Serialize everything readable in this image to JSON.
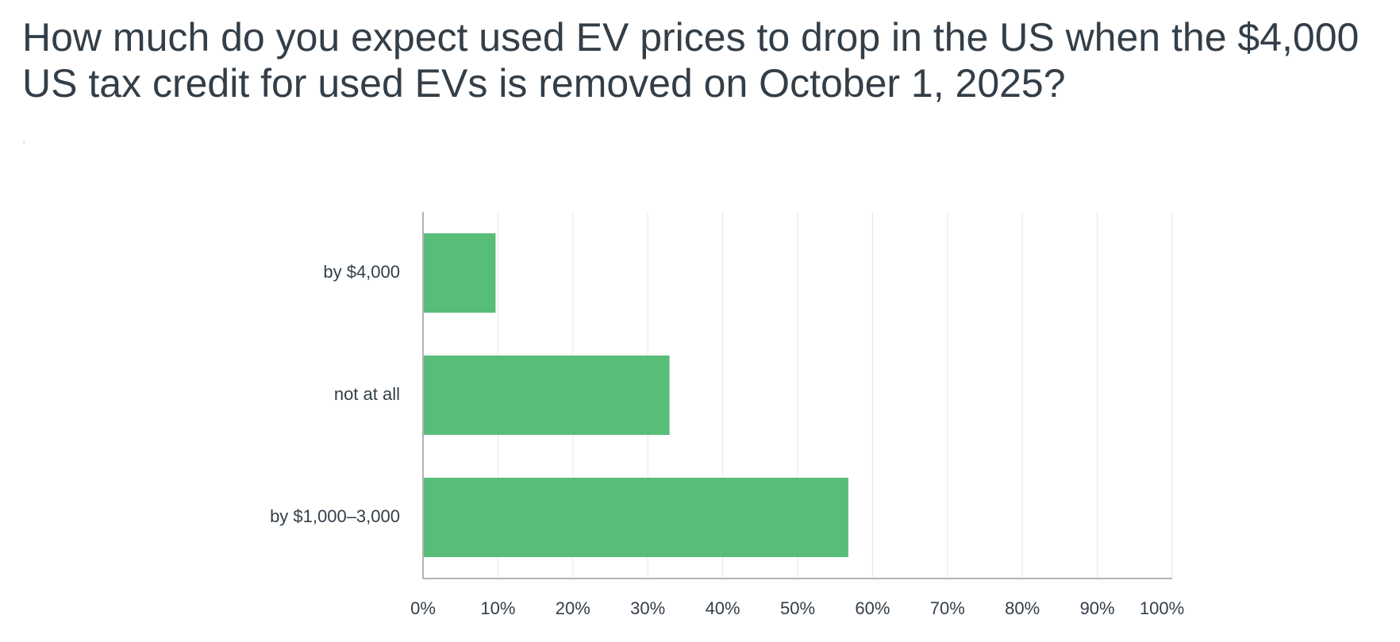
{
  "chart_data": {
    "type": "bar",
    "orientation": "horizontal",
    "title": "How much do you expect used EV prices to drop in the US when the $4,000 US tax credit for used EVs is removed on October 1, 2025?",
    "subtitle_mark": "ʻ",
    "categories": [
      "by $4,000",
      "not at all",
      "by $1,000–3,000"
    ],
    "values": [
      9.68,
      32.9,
      56.77
    ],
    "value_unit": "%",
    "xlim": [
      0,
      100
    ],
    "xticks": [
      0,
      10,
      20,
      30,
      40,
      50,
      60,
      70,
      80,
      90,
      100
    ],
    "xtick_labels": [
      "0%",
      "10%",
      "20%",
      "30%",
      "40%",
      "50%",
      "60%",
      "70%",
      "80%",
      "90%",
      "100%"
    ],
    "xlabel": "",
    "ylabel": "",
    "grid": true,
    "legend": "none",
    "colors": {
      "bar": "#57bd78",
      "grid": "#e6e6e6",
      "axis": "#b3b3b3",
      "text": "#333e48"
    }
  }
}
